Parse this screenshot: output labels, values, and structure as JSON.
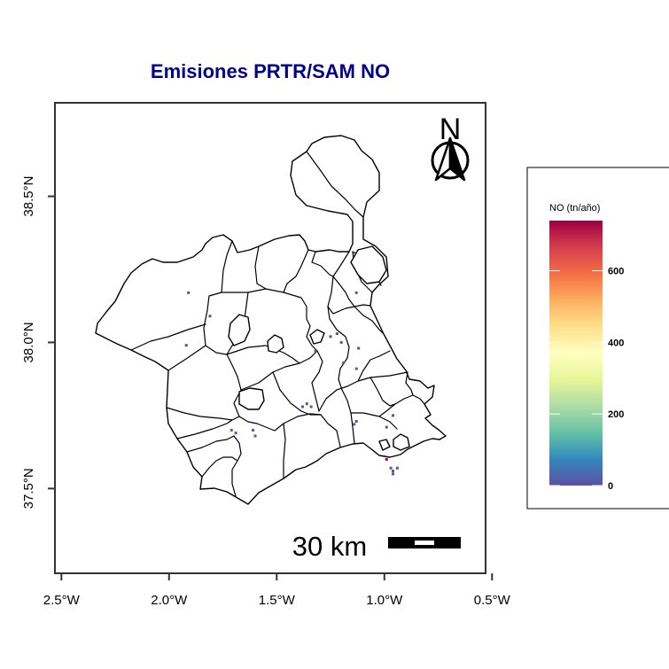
{
  "title": "Emisiones PRTR/SAM NO",
  "x_ticks": [
    {
      "value": -2.5,
      "label": "2.5°W"
    },
    {
      "value": -2.0,
      "label": "2.0°W"
    },
    {
      "value": -1.5,
      "label": "1.5°W"
    },
    {
      "value": -1.0,
      "label": "1.0°W"
    },
    {
      "value": -0.5,
      "label": "0.5°W"
    }
  ],
  "y_ticks": [
    {
      "value": 37.5,
      "label": "37.5°N"
    },
    {
      "value": 38.0,
      "label": "38.0°N"
    },
    {
      "value": 38.5,
      "label": "38.5°N"
    }
  ],
  "map_extent": {
    "lon": [
      -2.53,
      -0.53
    ],
    "lat": [
      37.21,
      38.82
    ]
  },
  "north_arrow_label": "N",
  "scale_bar_label": "30 km",
  "legend": {
    "title": "NO (tn/año)",
    "ticks": [
      0,
      200,
      400,
      600
    ],
    "range": [
      0,
      740
    ],
    "palette": [
      "#5e4fa2",
      "#3288bd",
      "#66c2a5",
      "#abdda4",
      "#e6f598",
      "#ffffbf",
      "#fee08b",
      "#fdae61",
      "#f46d43",
      "#d53e4f",
      "#9e0142"
    ]
  },
  "emission_points": [
    {
      "lon": -1.91,
      "lat": 38.17,
      "value": 5
    },
    {
      "lon": -1.81,
      "lat": 38.09,
      "value": 5
    },
    {
      "lon": -1.92,
      "lat": 37.99,
      "value": 5
    },
    {
      "lon": -1.13,
      "lat": 38.17,
      "value": 5
    },
    {
      "lon": -1.12,
      "lat": 37.98,
      "value": 5
    },
    {
      "lon": -1.13,
      "lat": 37.91,
      "value": 5
    },
    {
      "lon": -1.19,
      "lat": 37.93,
      "value": 10
    },
    {
      "lon": -1.25,
      "lat": 38.02,
      "value": 5
    },
    {
      "lon": -1.22,
      "lat": 38.03,
      "value": 5
    },
    {
      "lon": -1.2,
      "lat": 38.0,
      "value": 5
    },
    {
      "lon": -1.32,
      "lat": 37.97,
      "value": 5
    },
    {
      "lon": -1.34,
      "lat": 37.78,
      "value": 5
    },
    {
      "lon": -1.36,
      "lat": 37.79,
      "value": 5
    },
    {
      "lon": -1.38,
      "lat": 37.78,
      "value": 5
    },
    {
      "lon": -1.71,
      "lat": 37.7,
      "value": 5
    },
    {
      "lon": -1.69,
      "lat": 37.69,
      "value": 5
    },
    {
      "lon": -1.61,
      "lat": 37.7,
      "value": 5
    },
    {
      "lon": -1.6,
      "lat": 37.68,
      "value": 5
    },
    {
      "lon": -1.13,
      "lat": 37.73,
      "value": 5
    },
    {
      "lon": -1.14,
      "lat": 37.72,
      "value": 5
    },
    {
      "lon": -0.96,
      "lat": 37.75,
      "value": 5
    },
    {
      "lon": -0.99,
      "lat": 37.71,
      "value": 5
    },
    {
      "lon": -0.99,
      "lat": 37.6,
      "value": 740
    },
    {
      "lon": -0.97,
      "lat": 37.57,
      "value": 5
    },
    {
      "lon": -0.96,
      "lat": 37.56,
      "value": 5
    },
    {
      "lon": -0.94,
      "lat": 37.57,
      "value": 5
    },
    {
      "lon": -0.96,
      "lat": 37.55,
      "value": 5
    }
  ]
}
